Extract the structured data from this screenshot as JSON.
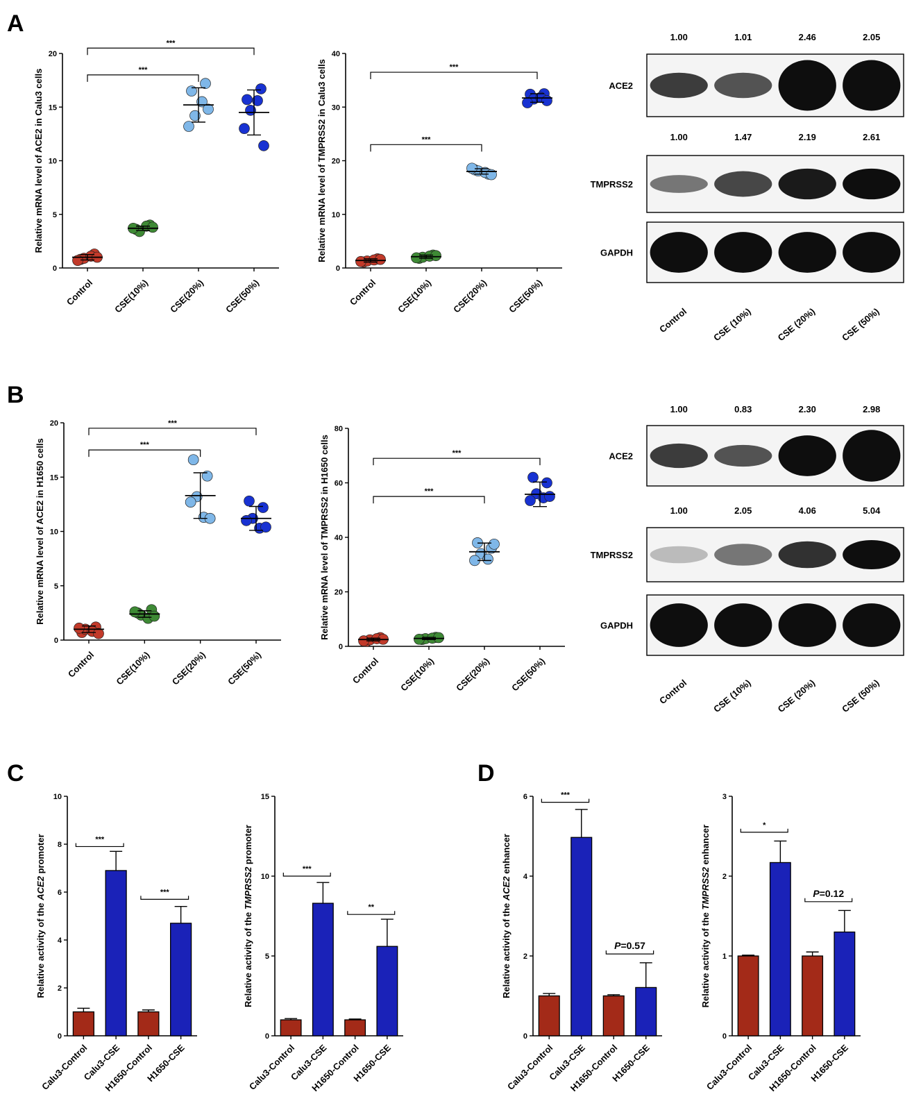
{
  "colors": {
    "control": "#c23a2a",
    "cse10": "#3e8a35",
    "cse20": "#7fb7e8",
    "cse50": "#1832d2",
    "bar_control": "#a32a18",
    "bar_cse": "#1a22b8",
    "blot": "#0e0e0e"
  },
  "panels": {
    "A": "A",
    "B": "B",
    "C": "C",
    "D": "D"
  },
  "blots": [
    {
      "panel": "A",
      "lanes": [
        "Control",
        "CSE (10%)",
        "CSE (20%)",
        "CSE (50%)"
      ],
      "rows": [
        {
          "label": "ACE2",
          "values": [
            "1.00",
            "1.01",
            "2.46",
            "2.05"
          ],
          "intensity": [
            0.8,
            0.7,
            1.0,
            1.0
          ],
          "thickness": [
            0.45,
            0.45,
            0.9,
            0.9
          ]
        },
        {
          "label": "TMPRSS2",
          "values": [
            "1.00",
            "1.47",
            "2.19",
            "2.61"
          ],
          "intensity": [
            0.55,
            0.75,
            0.95,
            1.0
          ],
          "thickness": [
            0.35,
            0.5,
            0.6,
            0.6
          ]
        },
        {
          "label": "GAPDH",
          "values": [],
          "intensity": [
            1.0,
            1.0,
            1.0,
            1.0
          ],
          "thickness": [
            0.75,
            0.75,
            0.75,
            0.75
          ]
        }
      ]
    },
    {
      "panel": "B",
      "lanes": [
        "Control",
        "CSE (10%)",
        "CSE (20%)",
        "CSE (50%)"
      ],
      "rows": [
        {
          "label": "ACE2",
          "values": [
            "1.00",
            "0.83",
            "2.30",
            "2.98"
          ],
          "intensity": [
            0.8,
            0.7,
            1.0,
            1.0
          ],
          "thickness": [
            0.45,
            0.4,
            0.75,
            0.95
          ]
        },
        {
          "label": "TMPRSS2",
          "values": [
            "1.00",
            "2.05",
            "4.06",
            "5.04"
          ],
          "intensity": [
            0.25,
            0.55,
            0.85,
            1.0
          ],
          "thickness": [
            0.35,
            0.45,
            0.55,
            0.6
          ]
        },
        {
          "label": "GAPDH",
          "values": [],
          "intensity": [
            1.0,
            1.0,
            1.0,
            1.0
          ],
          "thickness": [
            0.8,
            0.8,
            0.8,
            0.8
          ]
        }
      ]
    }
  ],
  "chart_data": [
    {
      "panel": "A",
      "type": "scatter",
      "ylabel": "Relative mRNA level of ACE2  in Calu3 cells",
      "categories": [
        "Control",
        "CSE(10%)",
        "CSE(20%)",
        "CSE(50%)"
      ],
      "ylim": [
        0,
        20
      ],
      "yticks": [
        0,
        5,
        10,
        15,
        20
      ],
      "points": [
        [
          0.8,
          1.3,
          0.9,
          1.1,
          0.7,
          1.0
        ],
        [
          3.6,
          4.0,
          3.4,
          3.9,
          3.7,
          3.8
        ],
        [
          16.5,
          17.2,
          14.2,
          15.5,
          13.2,
          14.8
        ],
        [
          15.7,
          16.7,
          14.7,
          15.6,
          13.0,
          11.4
        ]
      ],
      "mean": [
        1.0,
        3.7,
        15.2,
        14.5
      ],
      "sd": [
        0.25,
        0.2,
        1.6,
        2.1
      ],
      "sig": [
        {
          "from": 0,
          "to": 2,
          "label": "***",
          "y": 18
        },
        {
          "from": 0,
          "to": 3,
          "label": "***",
          "y": 20.5
        }
      ]
    },
    {
      "panel": "A",
      "type": "scatter",
      "ylabel": "Relative mRNA level of TMPRSS2 in Calu3 cells",
      "categories": [
        "Control",
        "CSE(10%)",
        "CSE(20%)",
        "CSE(50%)"
      ],
      "ylim": [
        0,
        40
      ],
      "yticks": [
        0,
        10,
        20,
        30,
        40
      ],
      "points": [
        [
          1.1,
          1.7,
          1.3,
          1.5,
          1.2,
          1.6
        ],
        [
          1.8,
          2.4,
          2.0,
          2.2,
          1.9,
          2.3
        ],
        [
          18.3,
          17.5,
          18.1,
          17.8,
          18.6,
          17.4
        ],
        [
          32.4,
          32.5,
          31.5,
          31.8,
          30.8,
          31.2
        ]
      ],
      "mean": [
        1.4,
        2.1,
        18.0,
        31.7
      ],
      "sd": [
        0.3,
        0.3,
        0.5,
        0.8
      ],
      "sig": [
        {
          "from": 0,
          "to": 2,
          "label": "***",
          "y": 23
        },
        {
          "from": 0,
          "to": 3,
          "label": "***",
          "y": 36.5
        }
      ]
    },
    {
      "panel": "B",
      "type": "scatter",
      "ylabel": "Relative mRNA level of ACE2  in  H1650 cells",
      "categories": [
        "Control",
        "CSE(10%)",
        "CSE(20%)",
        "CSE(50%)"
      ],
      "ylim": [
        0,
        20
      ],
      "yticks": [
        0,
        5,
        10,
        15,
        20
      ],
      "points": [
        [
          0.7,
          1.2,
          1.0,
          0.8,
          1.1,
          0.6
        ],
        [
          2.5,
          2.8,
          2.3,
          2.0,
          2.6,
          2.2
        ],
        [
          16.6,
          15.1,
          13.2,
          11.3,
          12.7,
          11.2
        ],
        [
          12.8,
          12.2,
          11.2,
          10.3,
          11.0,
          10.4
        ]
      ],
      "mean": [
        1.0,
        2.4,
        13.3,
        11.2
      ],
      "sd": [
        0.3,
        0.3,
        2.1,
        1.1
      ],
      "sig": [
        {
          "from": 0,
          "to": 2,
          "label": "***",
          "y": 17.5
        },
        {
          "from": 0,
          "to": 3,
          "label": "***",
          "y": 19.5
        }
      ]
    },
    {
      "panel": "B",
      "type": "scatter",
      "ylabel": "Relative mRNA level of TMPRSS2  in H1650 cells",
      "categories": [
        "Control",
        "CSE(10%)",
        "CSE(20%)",
        "CSE(50%)"
      ],
      "ylim": [
        0,
        80
      ],
      "yticks": [
        0,
        20,
        40,
        60,
        80
      ],
      "points": [
        [
          1.8,
          3.2,
          2.4,
          2.8,
          2.0,
          2.6
        ],
        [
          2.5,
          3.3,
          2.8,
          3.0,
          2.6,
          3.2
        ],
        [
          38.0,
          36.0,
          34.0,
          32.0,
          31.5,
          37.5
        ],
        [
          62.0,
          60.0,
          56.0,
          54.5,
          53.5,
          55.0
        ]
      ],
      "mean": [
        2.5,
        2.9,
        34.7,
        55.8
      ],
      "sd": [
        0.5,
        0.4,
        3.2,
        4.5
      ],
      "sig": [
        {
          "from": 0,
          "to": 2,
          "label": "***",
          "y": 55
        },
        {
          "from": 0,
          "to": 3,
          "label": "***",
          "y": 69
        }
      ]
    },
    {
      "panel": "C",
      "type": "bar",
      "ylabel_parts": [
        "Relative activity of the ",
        "ACE2",
        " promoter"
      ],
      "categories": [
        "Calu3-Control",
        "Calu3-CSE",
        "H1650-Control",
        "H1650-CSE"
      ],
      "ylim": [
        0,
        10
      ],
      "yticks": [
        0,
        2,
        4,
        6,
        8,
        10
      ],
      "values": [
        1.0,
        6.9,
        1.0,
        4.7
      ],
      "err": [
        0.15,
        0.8,
        0.08,
        0.7
      ],
      "sig": [
        {
          "from": 0,
          "to": 1,
          "label": "***",
          "y": 7.9
        },
        {
          "from": 2,
          "to": 3,
          "label": "***",
          "y": 5.7
        }
      ]
    },
    {
      "panel": "C",
      "type": "bar",
      "ylabel_parts": [
        "Relative activity of the ",
        "TMPRSS2",
        " promoter"
      ],
      "categories": [
        "Calu3-Control",
        "Calu3-CSE",
        "H1650-Control",
        "H1650-CSE"
      ],
      "ylim": [
        0,
        15
      ],
      "yticks": [
        0,
        5,
        10,
        15
      ],
      "values": [
        1.0,
        8.3,
        1.0,
        5.6
      ],
      "err": [
        0.08,
        1.3,
        0.05,
        1.7
      ],
      "sig": [
        {
          "from": 0,
          "to": 1,
          "label": "***",
          "y": 10.0
        },
        {
          "from": 2,
          "to": 3,
          "label": "**",
          "y": 7.6
        }
      ]
    },
    {
      "panel": "D",
      "type": "bar",
      "ylabel_parts": [
        "Relative activity of the ",
        "ACE2",
        " enhancer"
      ],
      "categories": [
        "Calu3-Control",
        "Calu3-CSE",
        "H1650-Control",
        "H1650-CSE"
      ],
      "ylim": [
        0,
        6
      ],
      "yticks": [
        0,
        2,
        4,
        6
      ],
      "values": [
        1.0,
        4.97,
        1.0,
        1.21
      ],
      "err": [
        0.06,
        0.7,
        0.03,
        0.62
      ],
      "sig": [
        {
          "from": 0,
          "to": 1,
          "label": "***",
          "y": 5.85
        },
        {
          "from": 2,
          "to": 3,
          "label": "P=0.57",
          "y": 2.05
        }
      ]
    },
    {
      "panel": "D",
      "type": "bar",
      "ylabel_parts": [
        "Relative activity of the ",
        "TMPRSS2",
        " enhancer"
      ],
      "categories": [
        "Calu3-Control",
        "Calu3-CSE",
        "H1650-Control",
        "H1650-CSE"
      ],
      "ylim": [
        0,
        3
      ],
      "yticks": [
        0,
        1,
        2,
        3
      ],
      "values": [
        1.0,
        2.17,
        1.0,
        1.3
      ],
      "err": [
        0.01,
        0.27,
        0.05,
        0.27
      ],
      "sig": [
        {
          "from": 0,
          "to": 1,
          "label": "*",
          "y": 2.55
        },
        {
          "from": 2,
          "to": 3,
          "label": "P=0.12",
          "y": 1.68
        }
      ]
    }
  ]
}
